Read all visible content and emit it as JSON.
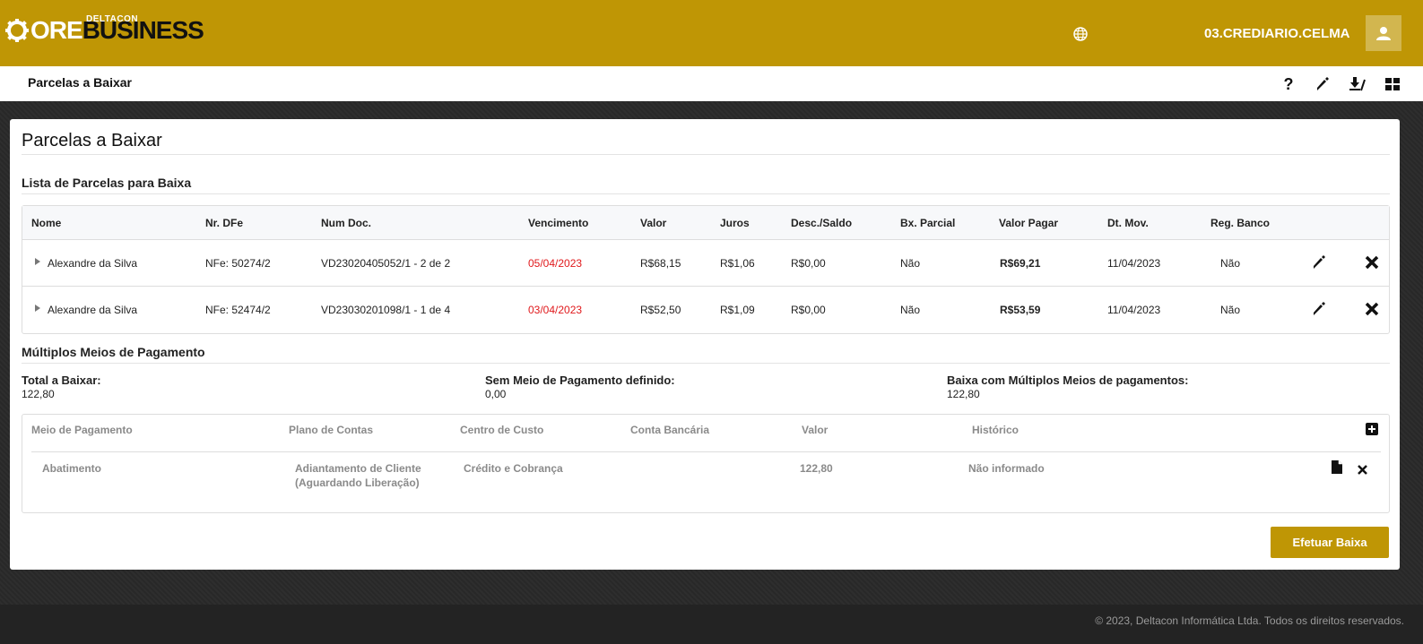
{
  "header": {
    "logo_small": "DELTACON",
    "logo_core": "ORE",
    "logo_business": "BUSINESS",
    "username": "03.CREDIARIO.CELMA"
  },
  "subheader": {
    "title": "Parcelas a Baixar",
    "icons": [
      "help-icon",
      "pencil-icon",
      "download-icon",
      "layout-icon"
    ]
  },
  "panel": {
    "title": "Parcelas a Baixar",
    "list_title": "Lista de Parcelas para Baixa",
    "columns": [
      "Nome",
      "Nr. DFe",
      "Num Doc.",
      "Vencimento",
      "Valor",
      "Juros",
      "Desc./Saldo",
      "Bx. Parcial",
      "Valor Pagar",
      "Dt. Mov.",
      "Reg. Banco"
    ],
    "rows": [
      {
        "nome": "Alexandre da Silva",
        "nrdfe": "NFe: 50274/2",
        "numdoc": "VD23020405052/1 - 2 de 2",
        "vencimento": "05/04/2023",
        "valor": "R$68,15",
        "juros": "R$1,06",
        "desc": "R$0,00",
        "bxparcial": "Não",
        "valorpagar": "R$69,21",
        "dtmov": "11/04/2023",
        "regbanco": "Não"
      },
      {
        "nome": "Alexandre da Silva",
        "nrdfe": "NFe: 52474/2",
        "numdoc": "VD23030201098/1 - 1 de 4",
        "vencimento": "03/04/2023",
        "valor": "R$52,50",
        "juros": "R$1,09",
        "desc": "R$0,00",
        "bxparcial": "Não",
        "valorpagar": "R$53,59",
        "dtmov": "11/04/2023",
        "regbanco": "Não"
      }
    ],
    "multi_title": "Múltiplos Meios de Pagamento",
    "totals": [
      {
        "label": "Total a Baixar:",
        "value": "122,80"
      },
      {
        "label": "Sem Meio de Pagamento definido:",
        "value": "0,00"
      },
      {
        "label": "Baixa com Múltiplos Meios de pagamentos:",
        "value": "122,80"
      }
    ],
    "pay_columns": [
      "Meio de Pagamento",
      "Plano de Contas",
      "Centro de Custo",
      "Conta Bancária",
      "Valor",
      "Histórico"
    ],
    "pay_row": {
      "meio": "Abatimento",
      "plano_line1": "Adiantamento de Cliente",
      "plano_line2": "(Aguardando Liberação)",
      "centro": "Crédito e Cobrança",
      "conta": "",
      "valor": "122,80",
      "historico": "Não informado"
    },
    "submit_label": "Efetuar Baixa"
  },
  "footer": {
    "text": "© 2023, Deltacon Informática Ltda. Todos os direitos reservados."
  },
  "colors": {
    "brand": "#bf9605",
    "overdue": "#e0191c"
  }
}
